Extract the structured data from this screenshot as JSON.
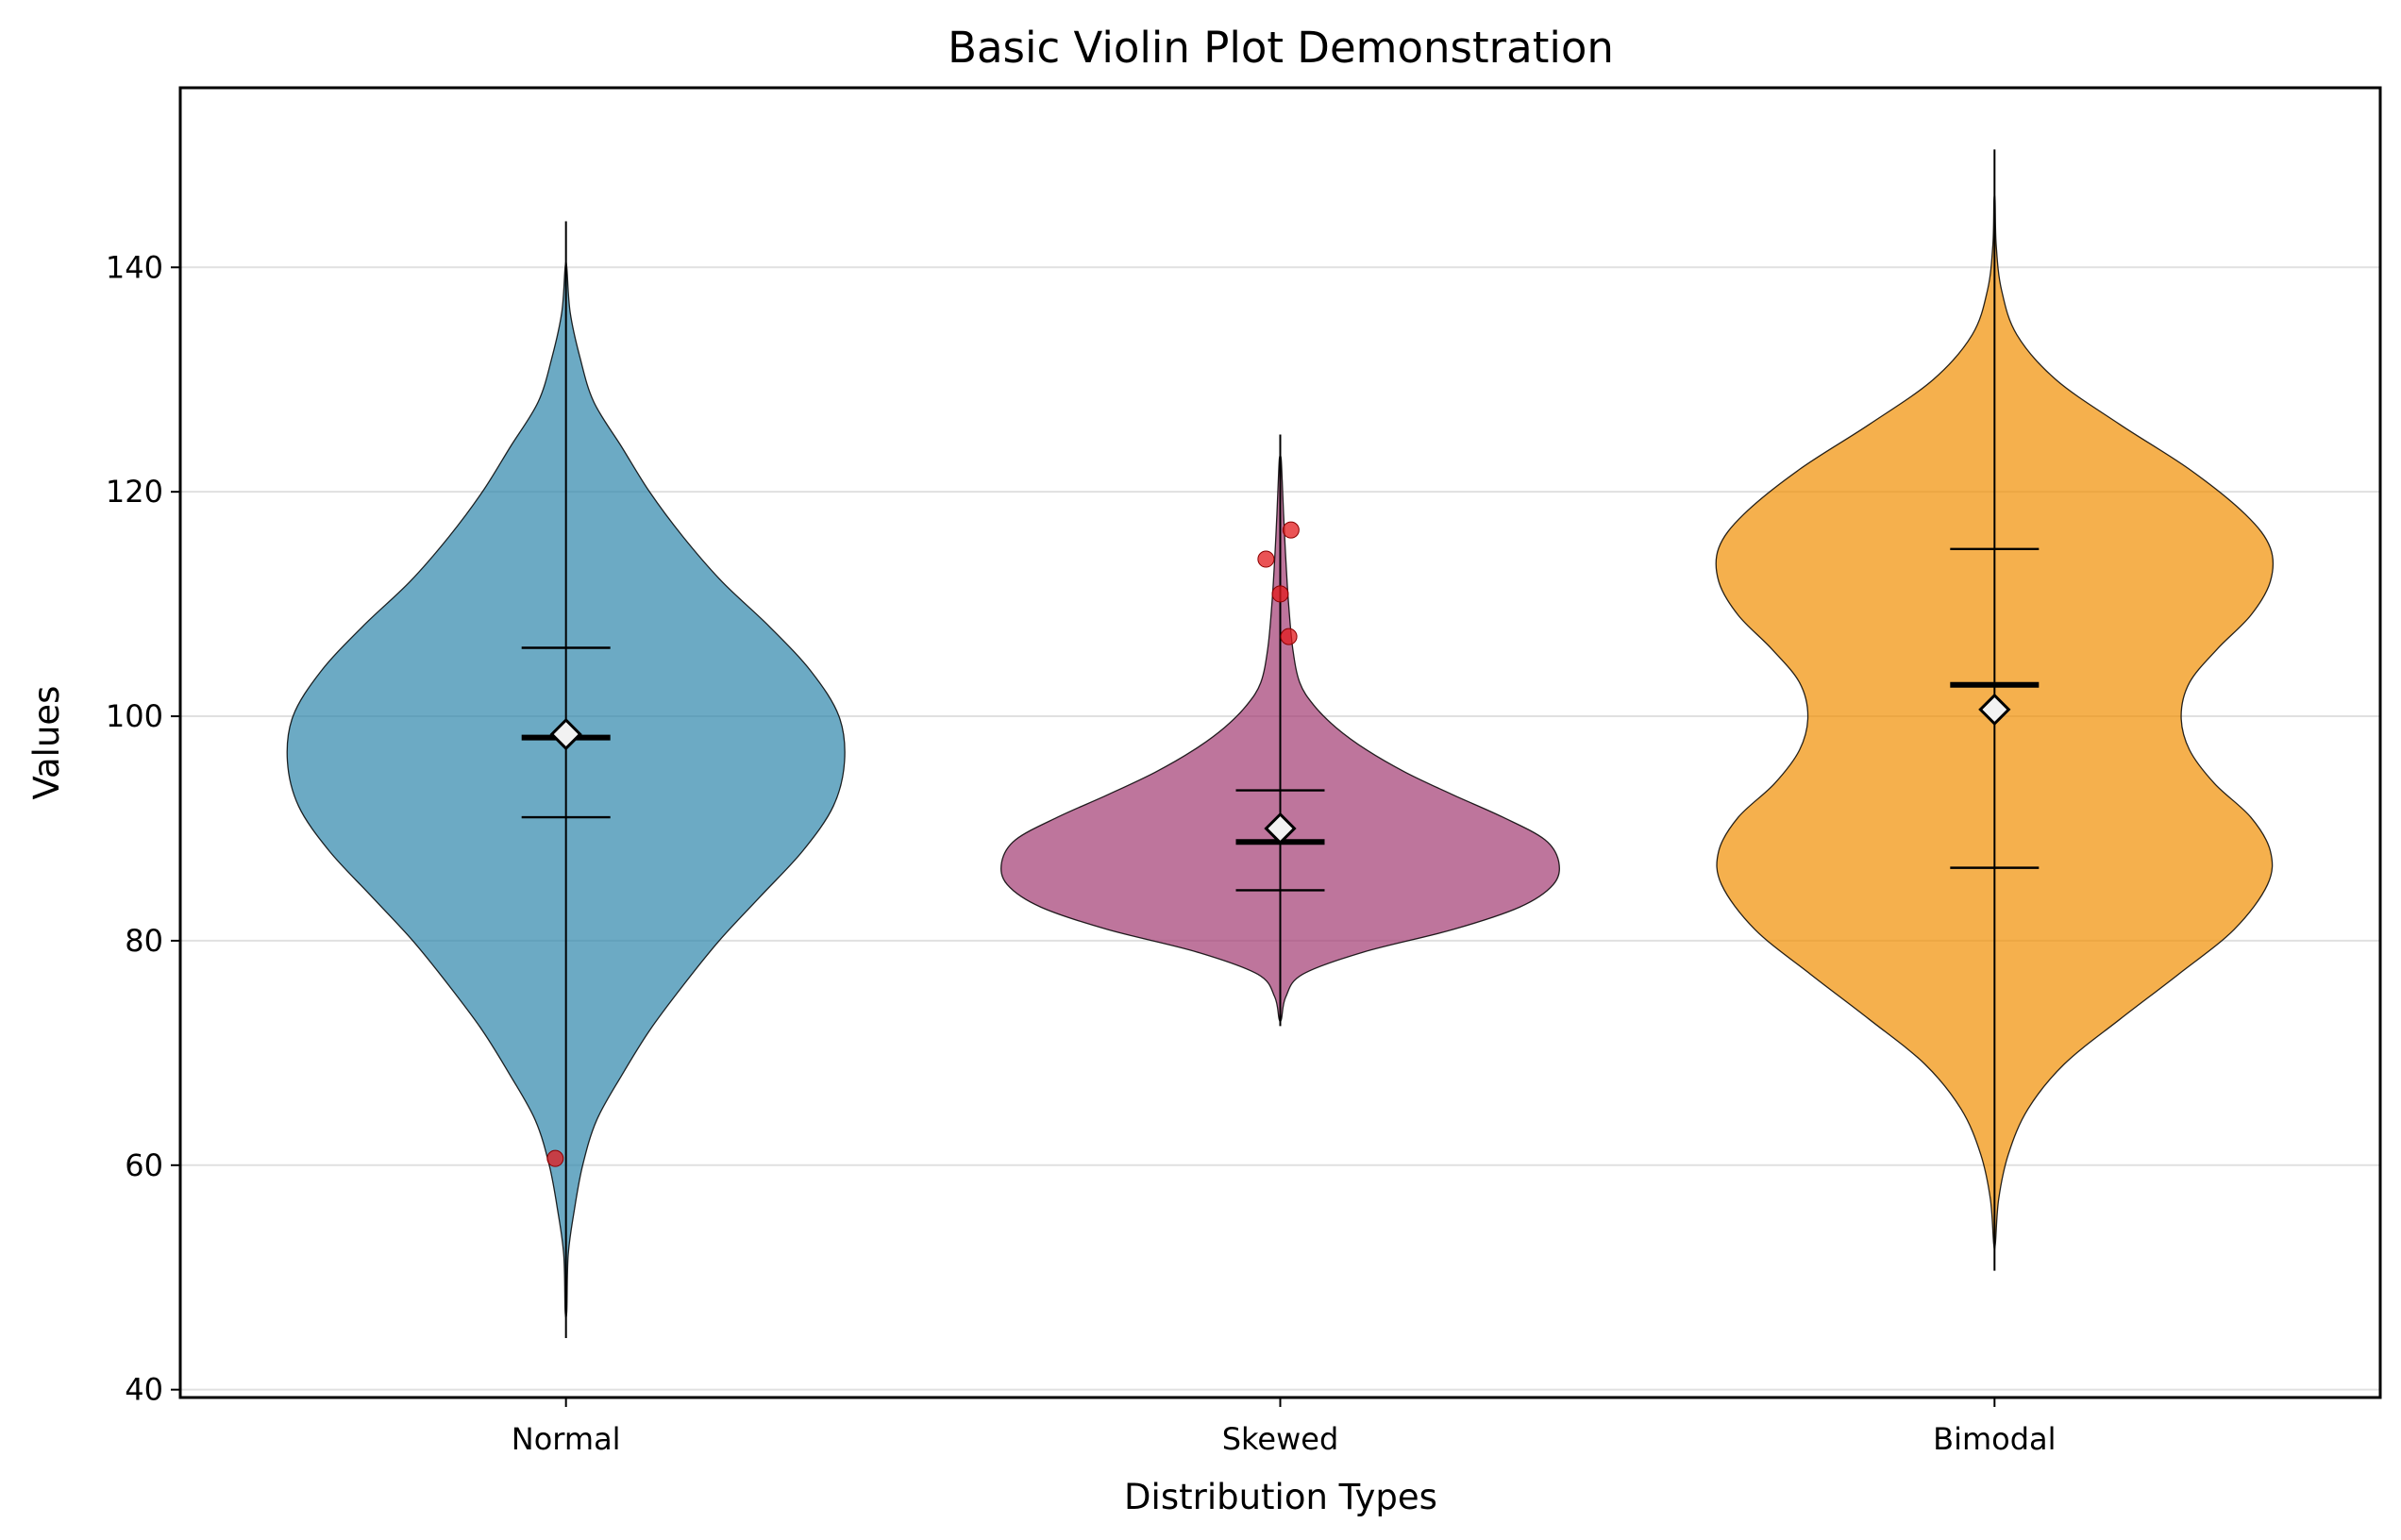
{
  "chart_data": {
    "type": "violin",
    "title": "Basic Violin Plot Demonstration",
    "xlabel": "Distribution Types",
    "ylabel": "Values",
    "categories": [
      "Normal",
      "Skewed",
      "Bimodal"
    ],
    "ylim": [
      39.3,
      156
    ],
    "yticks": [
      40,
      60,
      80,
      100,
      120,
      140
    ],
    "grid": "horizontal",
    "colors": {
      "Normal": "#2e86ab",
      "Skewed": "#a23b72",
      "Bimodal": "#f18f01",
      "outlier": "#e31a1c",
      "mean_marker": "#ffffff"
    },
    "violins": [
      {
        "name": "Normal",
        "min": 44.6,
        "max": 144.1,
        "median": 98.1,
        "mean": 98.4,
        "q1": 91.0,
        "q3": 106.1,
        "density": [
          [
            47,
            0.003
          ],
          [
            52,
            0.008
          ],
          [
            56,
            0.03
          ],
          [
            60,
            0.06
          ],
          [
            64,
            0.11
          ],
          [
            68,
            0.2
          ],
          [
            72,
            0.3
          ],
          [
            76,
            0.42
          ],
          [
            80,
            0.55
          ],
          [
            84,
            0.7
          ],
          [
            88,
            0.85
          ],
          [
            92,
            0.96
          ],
          [
            96,
            1.0
          ],
          [
            100,
            0.98
          ],
          [
            104,
            0.88
          ],
          [
            108,
            0.73
          ],
          [
            112,
            0.56
          ],
          [
            116,
            0.42
          ],
          [
            120,
            0.3
          ],
          [
            124,
            0.2
          ],
          [
            128,
            0.1
          ],
          [
            132,
            0.05
          ],
          [
            136,
            0.015
          ],
          [
            140,
            0.003
          ]
        ],
        "max_half_width": 0.39,
        "outliers": [
          [
            -0.015,
            60.6
          ]
        ]
      },
      {
        "name": "Skewed",
        "min": 72.4,
        "max": 125.1,
        "median": 88.8,
        "mean": 90.0,
        "q1": 84.5,
        "q3": 93.4,
        "density": [
          [
            73,
            0.004
          ],
          [
            75,
            0.02
          ],
          [
            77,
            0.08
          ],
          [
            79,
            0.3
          ],
          [
            81,
            0.62
          ],
          [
            83,
            0.86
          ],
          [
            85,
            0.98
          ],
          [
            87,
            1.0
          ],
          [
            89,
            0.95
          ],
          [
            91,
            0.8
          ],
          [
            93,
            0.62
          ],
          [
            95,
            0.45
          ],
          [
            97,
            0.31
          ],
          [
            99,
            0.2
          ],
          [
            101,
            0.12
          ],
          [
            103,
            0.07
          ],
          [
            106,
            0.045
          ],
          [
            110,
            0.03
          ],
          [
            114,
            0.02
          ],
          [
            118,
            0.012
          ],
          [
            121,
            0.007
          ],
          [
            123,
            0.003
          ]
        ],
        "max_half_width": 0.39,
        "outliers": [
          [
            -0.02,
            114.0
          ],
          [
            0.0,
            110.9
          ],
          [
            0.012,
            107.1
          ],
          [
            0.015,
            116.6
          ]
        ]
      },
      {
        "name": "Bimodal",
        "min": 50.6,
        "max": 150.5,
        "median": 102.8,
        "mean": 100.6,
        "q1": 86.5,
        "q3": 114.9,
        "density": [
          [
            53,
            0.003
          ],
          [
            57,
            0.015
          ],
          [
            61,
            0.05
          ],
          [
            65,
            0.12
          ],
          [
            69,
            0.25
          ],
          [
            73,
            0.45
          ],
          [
            77,
            0.66
          ],
          [
            81,
            0.86
          ],
          [
            85,
            0.98
          ],
          [
            88,
            0.99
          ],
          [
            91,
            0.92
          ],
          [
            94,
            0.79
          ],
          [
            97,
            0.7
          ],
          [
            100,
            0.67
          ],
          [
            103,
            0.7
          ],
          [
            106,
            0.8
          ],
          [
            109,
            0.92
          ],
          [
            112,
            0.99
          ],
          [
            115,
            0.99
          ],
          [
            118,
            0.9
          ],
          [
            122,
            0.7
          ],
          [
            126,
            0.45
          ],
          [
            130,
            0.22
          ],
          [
            134,
            0.08
          ],
          [
            138,
            0.025
          ],
          [
            142,
            0.006
          ],
          [
            146,
            0.002
          ]
        ],
        "max_half_width": 0.39,
        "outliers": []
      }
    ]
  }
}
